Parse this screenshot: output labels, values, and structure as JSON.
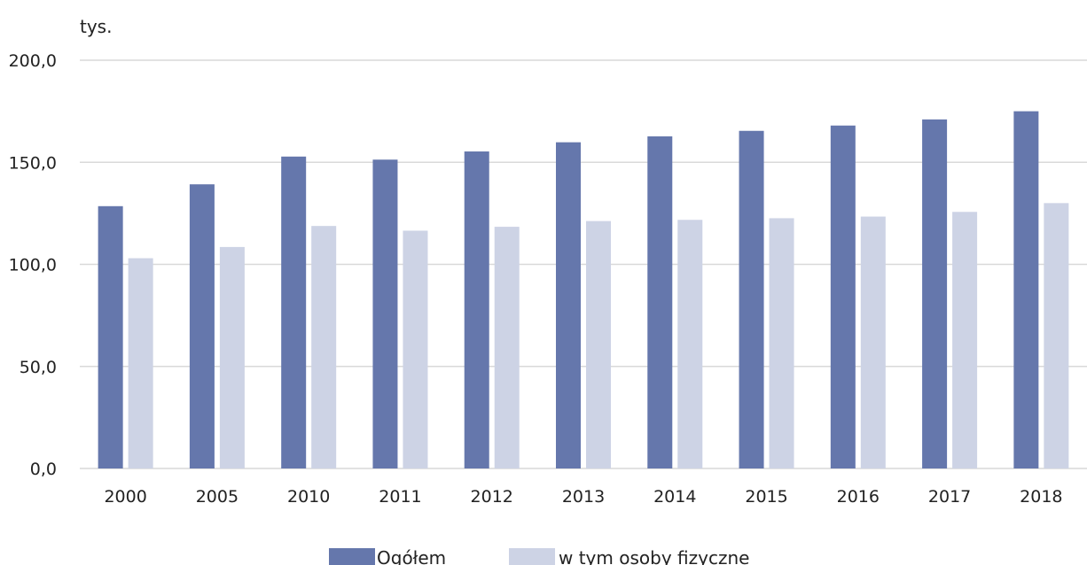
{
  "chart_data": {
    "type": "bar",
    "title": "",
    "ylabel": "tys.",
    "xlabel": "",
    "ylim": [
      0,
      200
    ],
    "yticks": [
      "0,0",
      "50,0",
      "100,0",
      "150,0",
      "200,0"
    ],
    "grid": true,
    "legend_position": "bottom",
    "categories": [
      "2000",
      "2005",
      "2010",
      "2011",
      "2012",
      "2013",
      "2014",
      "2015",
      "2016",
      "2017",
      "2018"
    ],
    "series": [
      {
        "name": "Ogółem",
        "color": "#6577ac",
        "values": [
          128.5,
          139.2,
          152.8,
          151.3,
          155.3,
          159.8,
          162.7,
          165.4,
          168.0,
          171.0,
          175.0
        ]
      },
      {
        "name": "w tym osoby fizyczne",
        "color": "#cdd3e5",
        "values": [
          103.0,
          108.5,
          118.8,
          116.5,
          118.4,
          121.2,
          121.8,
          122.6,
          123.4,
          125.7,
          130.0
        ]
      }
    ]
  }
}
